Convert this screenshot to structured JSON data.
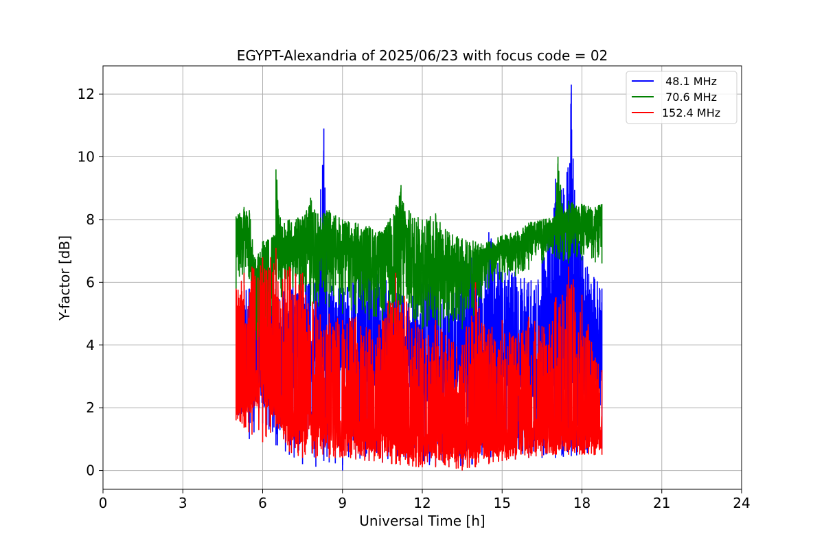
{
  "chart_data": {
    "type": "line",
    "title": "EGYPT-Alexandria of 2025/06/23 with focus code = 02",
    "xlabel": "Universal Time [h]",
    "ylabel": "Y-factor [dB]",
    "xlim": [
      0,
      24
    ],
    "ylim": [
      -0.6,
      12.9
    ],
    "xticks": [
      0,
      3,
      6,
      9,
      12,
      15,
      18,
      21,
      24
    ],
    "yticks": [
      0,
      2,
      4,
      6,
      8,
      10,
      12
    ],
    "grid": true,
    "legend_position": "top-right",
    "x_range_data": [
      5.0,
      18.75
    ],
    "series": [
      {
        "name": " 48.1 MHz",
        "color": "#0000ff",
        "upper_envelope": [
          [
            5.0,
            5.6
          ],
          [
            5.5,
            5.8
          ],
          [
            6.0,
            6.2
          ],
          [
            6.5,
            6.0
          ],
          [
            7.0,
            5.8
          ],
          [
            7.5,
            6.2
          ],
          [
            8.0,
            6.0
          ],
          [
            8.3,
            10.9
          ],
          [
            8.5,
            6.0
          ],
          [
            9.0,
            5.8
          ],
          [
            9.5,
            6.5
          ],
          [
            10.0,
            6.8
          ],
          [
            10.5,
            6.3
          ],
          [
            11.0,
            6.0
          ],
          [
            11.5,
            5.4
          ],
          [
            12.0,
            6.0
          ],
          [
            12.5,
            7.6
          ],
          [
            13.0,
            6.2
          ],
          [
            13.5,
            7.2
          ],
          [
            14.0,
            6.8
          ],
          [
            14.5,
            7.6
          ],
          [
            15.0,
            6.6
          ],
          [
            15.5,
            6.4
          ],
          [
            16.0,
            6.0
          ],
          [
            16.5,
            6.8
          ],
          [
            17.0,
            9.3
          ],
          [
            17.3,
            9.0
          ],
          [
            17.6,
            12.3
          ],
          [
            17.8,
            8.0
          ],
          [
            18.2,
            6.5
          ],
          [
            18.75,
            5.8
          ]
        ],
        "lower_envelope": [
          [
            5.0,
            1.8
          ],
          [
            5.5,
            1.0
          ],
          [
            6.0,
            1.5
          ],
          [
            6.5,
            0.8
          ],
          [
            7.0,
            0.5
          ],
          [
            7.5,
            0.2
          ],
          [
            7.8,
            0.0
          ],
          [
            8.3,
            0.3
          ],
          [
            8.8,
            0.2
          ],
          [
            9.0,
            0.0
          ],
          [
            9.5,
            0.4
          ],
          [
            10.0,
            0.3
          ],
          [
            11.0,
            0.2
          ],
          [
            12.0,
            0.2
          ],
          [
            13.0,
            0.1
          ],
          [
            14.0,
            0.2
          ],
          [
            15.0,
            0.3
          ],
          [
            16.0,
            0.4
          ],
          [
            17.0,
            0.4
          ],
          [
            18.0,
            0.5
          ],
          [
            18.75,
            0.7
          ]
        ],
        "baseline_low": [
          [
            5.0,
            2.3
          ],
          [
            7.0,
            3.5
          ],
          [
            9.0,
            3.8
          ],
          [
            11.0,
            3.0
          ],
          [
            13.0,
            3.2
          ],
          [
            15.0,
            3.3
          ],
          [
            17.0,
            3.0
          ],
          [
            18.75,
            3.2
          ]
        ]
      },
      {
        "name": " 70.6 MHz",
        "color": "#008000",
        "upper_envelope": [
          [
            5.0,
            8.1
          ],
          [
            5.3,
            8.4
          ],
          [
            5.5,
            8.3
          ],
          [
            5.7,
            6.8
          ],
          [
            6.0,
            7.3
          ],
          [
            6.5,
            7.6
          ],
          [
            6.5,
            9.6
          ],
          [
            6.7,
            7.8
          ],
          [
            7.0,
            8.0
          ],
          [
            7.5,
            8.1
          ],
          [
            7.8,
            8.7
          ],
          [
            8.0,
            8.2
          ],
          [
            8.5,
            8.3
          ],
          [
            9.0,
            8.0
          ],
          [
            9.5,
            7.9
          ],
          [
            10.0,
            7.8
          ],
          [
            10.5,
            7.6
          ],
          [
            11.0,
            8.4
          ],
          [
            11.2,
            9.1
          ],
          [
            11.5,
            8.3
          ],
          [
            12.0,
            8.0
          ],
          [
            12.5,
            8.2
          ],
          [
            13.0,
            7.6
          ],
          [
            13.5,
            7.4
          ],
          [
            14.0,
            7.3
          ],
          [
            14.5,
            7.3
          ],
          [
            15.0,
            7.5
          ],
          [
            15.5,
            7.6
          ],
          [
            16.0,
            7.9
          ],
          [
            16.5,
            8.0
          ],
          [
            17.0,
            8.1
          ],
          [
            17.1,
            10.0
          ],
          [
            17.3,
            8.2
          ],
          [
            17.5,
            8.6
          ],
          [
            18.0,
            8.5
          ],
          [
            18.5,
            8.4
          ],
          [
            18.75,
            8.5
          ]
        ],
        "lower_envelope": [
          [
            5.0,
            5.8
          ],
          [
            5.5,
            6.1
          ],
          [
            6.0,
            2.5
          ],
          [
            6.5,
            5.6
          ],
          [
            7.0,
            5.4
          ],
          [
            7.5,
            5.3
          ],
          [
            8.0,
            5.2
          ],
          [
            8.5,
            5.2
          ],
          [
            9.0,
            5.0
          ],
          [
            9.5,
            5.0
          ],
          [
            10.0,
            4.8
          ],
          [
            10.5,
            4.6
          ],
          [
            11.0,
            4.5
          ],
          [
            11.5,
            4.4
          ],
          [
            12.0,
            4.4
          ],
          [
            12.5,
            4.3
          ],
          [
            13.0,
            4.4
          ],
          [
            13.5,
            4.5
          ],
          [
            14.0,
            4.8
          ],
          [
            14.5,
            5.8
          ],
          [
            15.0,
            6.0
          ],
          [
            15.5,
            6.2
          ],
          [
            16.0,
            6.4
          ],
          [
            16.5,
            6.6
          ],
          [
            17.0,
            6.8
          ],
          [
            17.5,
            6.6
          ],
          [
            18.0,
            6.7
          ],
          [
            18.75,
            6.6
          ]
        ]
      },
      {
        "name": "152.4 MHz",
        "color": "#ff0000",
        "upper_envelope": [
          [
            5.0,
            5.8
          ],
          [
            5.3,
            6.3
          ],
          [
            5.6,
            6.5
          ],
          [
            6.0,
            6.8
          ],
          [
            6.3,
            6.8
          ],
          [
            6.5,
            7.1
          ],
          [
            7.0,
            6.5
          ],
          [
            7.5,
            6.3
          ],
          [
            8.0,
            5.4
          ],
          [
            8.5,
            5.0
          ],
          [
            9.0,
            4.8
          ],
          [
            9.5,
            4.9
          ],
          [
            10.0,
            4.5
          ],
          [
            10.5,
            4.8
          ],
          [
            11.0,
            6.3
          ],
          [
            11.5,
            5.2
          ],
          [
            12.0,
            4.5
          ],
          [
            12.5,
            4.8
          ],
          [
            13.0,
            4.2
          ],
          [
            13.5,
            4.0
          ],
          [
            14.0,
            6.0
          ],
          [
            14.5,
            4.5
          ],
          [
            15.0,
            4.8
          ],
          [
            15.5,
            4.2
          ],
          [
            16.0,
            4.9
          ],
          [
            16.5,
            4.6
          ],
          [
            17.0,
            5.5
          ],
          [
            17.5,
            6.5
          ],
          [
            18.0,
            5.6
          ],
          [
            18.5,
            3.6
          ],
          [
            18.75,
            3.2
          ]
        ],
        "lower_envelope": [
          [
            5.0,
            1.6
          ],
          [
            5.5,
            1.2
          ],
          [
            6.0,
            0.9
          ],
          [
            6.5,
            1.4
          ],
          [
            7.0,
            0.6
          ],
          [
            7.5,
            0.4
          ],
          [
            8.0,
            0.4
          ],
          [
            9.0,
            0.4
          ],
          [
            10.0,
            0.3
          ],
          [
            11.0,
            0.2
          ],
          [
            12.0,
            0.1
          ],
          [
            13.0,
            0.1
          ],
          [
            13.5,
            0.0
          ],
          [
            14.0,
            0.1
          ],
          [
            15.0,
            0.3
          ],
          [
            16.0,
            0.4
          ],
          [
            17.0,
            0.5
          ],
          [
            18.0,
            0.5
          ],
          [
            18.75,
            0.5
          ]
        ],
        "baseline_low": [
          [
            5.0,
            2.0
          ],
          [
            6.0,
            2.8
          ],
          [
            7.0,
            1.5
          ],
          [
            9.0,
            1.2
          ],
          [
            11.0,
            1.0
          ],
          [
            13.0,
            0.9
          ],
          [
            15.0,
            1.0
          ],
          [
            17.0,
            1.2
          ],
          [
            18.75,
            1.3
          ]
        ]
      }
    ]
  }
}
